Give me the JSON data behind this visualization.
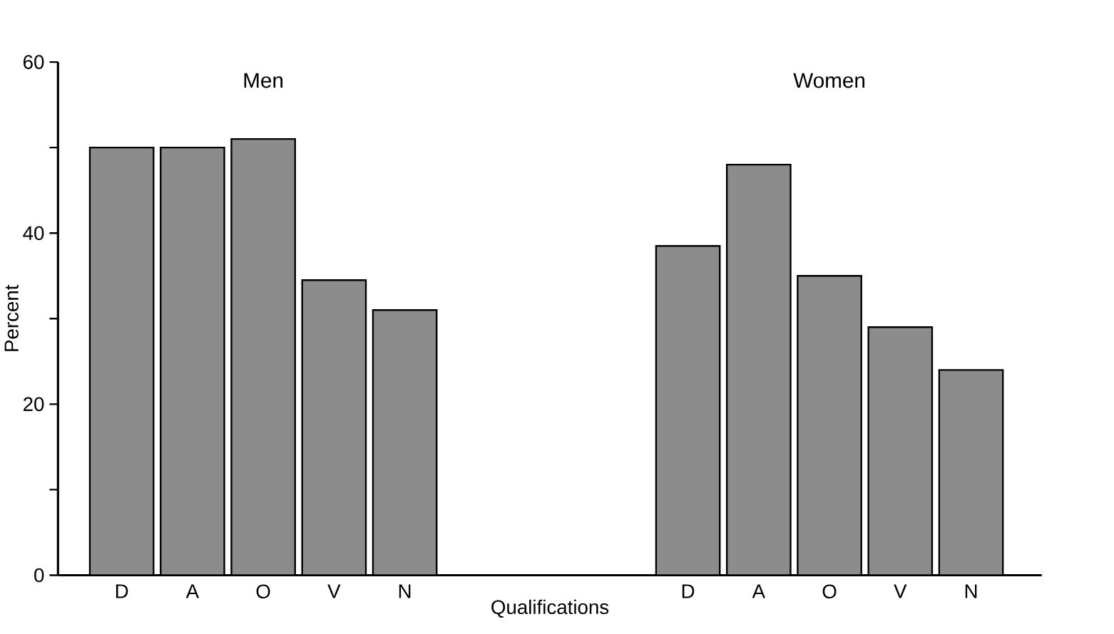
{
  "chart_data": {
    "type": "bar",
    "xlabel": "Qualifications",
    "ylabel": "Percent",
    "annotations": [
      "Men",
      "Women"
    ],
    "categories": [
      "D",
      "A",
      "O",
      "V",
      "N",
      null,
      null,
      null,
      "D",
      "A",
      "O",
      "V",
      "N"
    ],
    "series": [
      {
        "color": "#8c8c8c",
        "values": [
          50,
          50,
          51,
          34.5,
          31,
          null,
          null,
          null,
          38.5,
          48,
          35,
          29,
          24
        ]
      }
    ],
    "ylim": [
      0,
      60
    ],
    "yticks": [
      0,
      {
        "value": 10,
        "label": null
      },
      20,
      {
        "value": 30,
        "label": null
      },
      40,
      {
        "value": 50,
        "label": null
      },
      60
    ]
  }
}
